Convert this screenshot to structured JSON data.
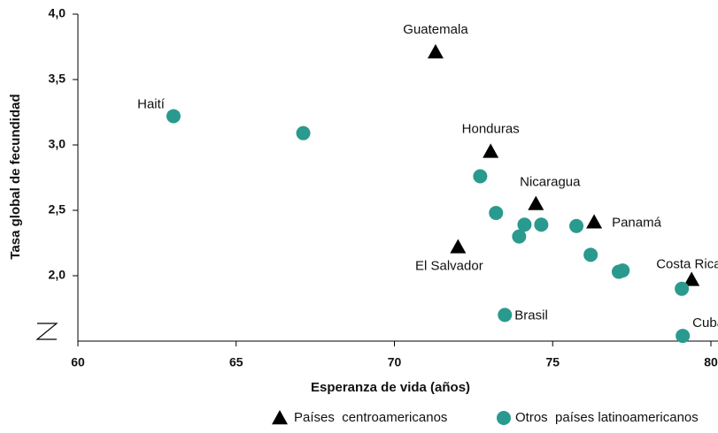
{
  "chart_data": {
    "type": "scatter",
    "xlabel": "Esperanza de vida (años)",
    "ylabel": "Tasa global de fecundidad",
    "xlim": [
      60,
      80
    ],
    "xticks": [
      60,
      65,
      70,
      75,
      80
    ],
    "ylim": [
      1.5,
      4.0
    ],
    "yticks": [
      {
        "value": 2.0,
        "label": "2,0"
      },
      {
        "value": 2.5,
        "label": "2,5"
      },
      {
        "value": 3.0,
        "label": "3,0"
      },
      {
        "value": 3.5,
        "label": "3,5"
      },
      {
        "value": 4.0,
        "label": "4,0"
      }
    ],
    "legend": "bottom",
    "series": [
      {
        "name": "Países  centroamericanos",
        "color": "#000000",
        "marker": "triangle",
        "x": [
          71.3,
          73.04,
          74.47,
          76.31,
          72.01,
          79.39
        ],
        "values": [
          3.71,
          2.95,
          2.55,
          2.41,
          2.22,
          1.97
        ],
        "labels": [
          "Guatemala",
          "Honduras",
          "Nicaragua",
          "Panamá",
          "El Salvador",
          "Costa Rica"
        ]
      },
      {
        "name": "Otros  países latinoamericanos",
        "color": "#2a9a8e",
        "marker": "circle",
        "x": [
          63.02,
          67.12,
          72.71,
          73.21,
          74.11,
          74.64,
          73.94,
          75.75,
          76.2,
          77.09,
          77.21,
          79.08,
          73.49,
          79.11
        ],
        "values": [
          3.22,
          3.09,
          2.76,
          2.48,
          2.39,
          2.39,
          2.3,
          2.38,
          2.16,
          2.03,
          2.04,
          1.9,
          1.7,
          1.54
        ],
        "labels": [
          "Haití",
          null,
          null,
          null,
          null,
          null,
          null,
          null,
          null,
          null,
          null,
          null,
          "Brasil",
          "Cuba"
        ]
      }
    ]
  }
}
